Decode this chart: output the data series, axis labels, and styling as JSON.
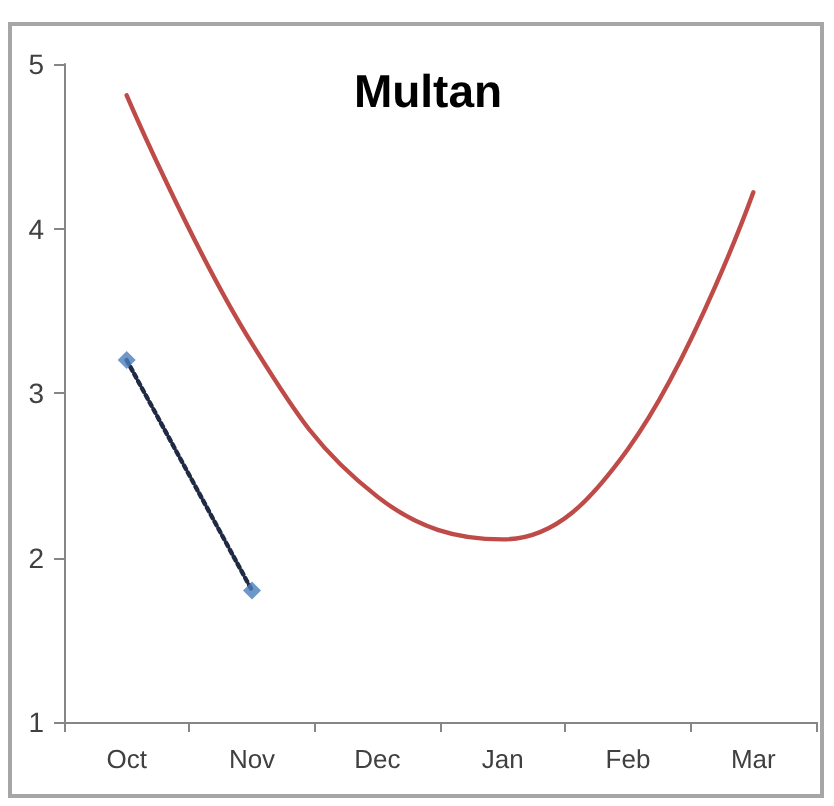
{
  "chart_data": {
    "type": "line",
    "title": "Multan",
    "categories": [
      "Oct",
      "Nov",
      "Dec",
      "Jan",
      "Feb",
      "Mar"
    ],
    "series": [
      {
        "color": "#be4b48",
        "marker": "none",
        "line_style": "solid",
        "values": [
          4.81,
          3.3,
          2.37,
          2.11,
          2.66,
          4.22
        ]
      },
      {
        "type": "line",
        "color": "#1f2a44",
        "marker": "none",
        "line_style": "dotted",
        "values": [
          3.2,
          1.8,
          null,
          null,
          null,
          null
        ]
      },
      {
        "type": "scatter",
        "color": "#4a7ebb",
        "marker": "diamond",
        "values": [
          3.2,
          1.8,
          null,
          null,
          null,
          null
        ]
      }
    ],
    "ylim": [
      1,
      5
    ],
    "yticks": [
      1,
      2,
      3,
      4,
      5
    ],
    "grid": false
  }
}
